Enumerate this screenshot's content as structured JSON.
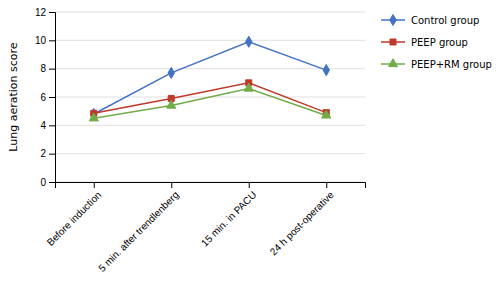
{
  "chart_data": {
    "type": "line",
    "categories": [
      "Before induction",
      "5 min. after trendlenberg",
      "15 min. in PACU",
      "24 h post-operative"
    ],
    "series": [
      {
        "name": "Control group",
        "values": [
          4.8,
          7.7,
          9.9,
          7.9
        ],
        "color": "#4472C4",
        "marker": "diamond"
      },
      {
        "name": "PEEP group",
        "values": [
          4.85,
          5.9,
          7.0,
          4.9
        ],
        "color": "#C0392B",
        "marker": "square"
      },
      {
        "name": "PEEP+RM group",
        "values": [
          4.5,
          5.4,
          6.6,
          4.7
        ],
        "color": "#70AD47",
        "marker": "triangle"
      }
    ],
    "ylabel": "Lung aeration score",
    "ylim": [
      0,
      12
    ],
    "yticks": [
      0,
      2,
      4,
      6,
      8,
      10,
      12
    ],
    "grid": true
  }
}
